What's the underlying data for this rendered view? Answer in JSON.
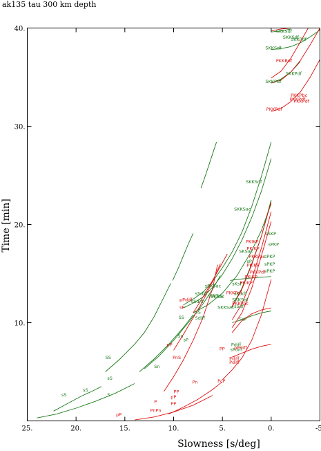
{
  "chart_data": {
    "type": "line",
    "title": "ak135 tau 300 km depth",
    "xlabel": "Slowness [s/deg]",
    "ylabel": "Time [min]",
    "xlim": [
      25,
      -5
    ],
    "ylim": [
      0,
      40
    ],
    "x_ticks": [
      {
        "v": 25,
        "label": "25."
      },
      {
        "v": 20,
        "label": "20."
      },
      {
        "v": 15,
        "label": "15."
      },
      {
        "v": 10,
        "label": "10."
      },
      {
        "v": 5,
        "label": "5."
      },
      {
        "v": 0,
        "label": "0."
      },
      {
        "v": -5,
        "label": "-5."
      }
    ],
    "y_ticks": [
      {
        "v": 10,
        "label": "10."
      },
      {
        "v": 20,
        "label": "20."
      },
      {
        "v": 30,
        "label": "30."
      },
      {
        "v": 40,
        "label": "40."
      }
    ],
    "grid": false,
    "colors": {
      "S": "#1a7a1a",
      "P": "#e01010",
      "axis": "#000000"
    },
    "series": [
      {
        "color": "S",
        "x": [
          22.3,
          21,
          19.5,
          18.2,
          17.4
        ],
        "y": [
          1.0,
          1.7,
          2.5,
          3.1,
          3.5
        ]
      },
      {
        "color": "S",
        "x": [
          17.0,
          15.5,
          14.0,
          13.0,
          12.0,
          11.0,
          10.3
        ],
        "y": [
          5.0,
          6.3,
          7.8,
          9.0,
          10.6,
          12.6,
          14.0
        ]
      },
      {
        "color": "S",
        "x": [
          10.1,
          9.5,
          9.0,
          8.5,
          8.0
        ],
        "y": [
          14.3,
          15.6,
          16.8,
          18.0,
          19.1
        ]
      },
      {
        "color": "S",
        "x": [
          7.2,
          6.8,
          6.4,
          6.0,
          5.6
        ],
        "y": [
          23.7,
          24.8,
          26.0,
          27.2,
          28.4
        ]
      },
      {
        "color": "S",
        "x": [
          24.0,
          22.0,
          20.0,
          18.0,
          16.0,
          14.0
        ],
        "y": [
          0.3,
          0.7,
          1.3,
          2.0,
          2.8,
          3.8
        ]
      },
      {
        "color": "S",
        "x": [
          13.5,
          12.0,
          10.5,
          9.0,
          8.0
        ],
        "y": [
          5.0,
          6.3,
          7.8,
          9.5,
          10.8
        ]
      },
      {
        "color": "S",
        "x": [
          9.0,
          8.0,
          7.0,
          6.0,
          5.0,
          4.0,
          3.0,
          2.0,
          1.0,
          0.0
        ],
        "y": [
          11.8,
          12.4,
          13.1,
          14.2,
          15.6,
          17.2,
          19.2,
          21.8,
          24.9,
          28.4
        ]
      },
      {
        "color": "S",
        "x": [
          9.0,
          8.0,
          7.0,
          6.0,
          5.0,
          4.0,
          3.0,
          2.0,
          1.0,
          0.0
        ],
        "y": [
          11.5,
          12.0,
          12.6,
          13.6,
          14.9,
          16.5,
          18.4,
          20.7,
          23.4,
          26.7
        ]
      },
      {
        "color": "S",
        "x": [
          8.0,
          6.5,
          5.0,
          3.5,
          2.0,
          1.0,
          0.0
        ],
        "y": [
          11.0,
          11.8,
          13.0,
          14.8,
          17.3,
          19.4,
          22.1
        ]
      },
      {
        "color": "S",
        "x": [
          13.0,
          11.5,
          10.0,
          8.5,
          7.0,
          6.0,
          5.2
        ],
        "y": [
          5.3,
          6.6,
          8.2,
          10.0,
          11.9,
          13.4,
          14.8
        ]
      },
      {
        "color": "S",
        "x": [
          4.0,
          3.0,
          2.0,
          1.0,
          0.0
        ],
        "y": [
          10.0,
          10.3,
          10.7,
          11.0,
          11.2
        ]
      },
      {
        "color": "S",
        "x": [
          4.2,
          3.5,
          2.5,
          1.5,
          0.0
        ],
        "y": [
          14.3,
          14.4,
          14.5,
          14.6,
          14.7
        ]
      },
      {
        "color": "S",
        "x": [
          4.1,
          3.0,
          2.0,
          1.0,
          0.0
        ],
        "y": [
          11.5,
          13.5,
          16.0,
          18.8,
          22.5
        ]
      },
      {
        "color": "S",
        "x": [
          0.0,
          -1.0,
          -2.0,
          -3.0
        ],
        "y": [
          34.4,
          34.8,
          35.5,
          36.6
        ]
      },
      {
        "color": "S",
        "x": [
          0.0,
          -1.0,
          -2.0,
          -3.0,
          -4.0,
          -5.0
        ],
        "y": [
          37.8,
          37.9,
          38.1,
          38.5,
          39.1,
          39.8
        ]
      },
      {
        "color": "S",
        "x": [
          0.0,
          -1.0,
          -2.0
        ],
        "y": [
          39.6,
          39.7,
          39.9
        ]
      },
      {
        "color": "P",
        "x": [
          14.0,
          12.0,
          10.0,
          8.0,
          6.0
        ],
        "y": [
          0.1,
          0.4,
          0.9,
          1.6,
          2.6
        ]
      },
      {
        "color": "P",
        "x": [
          10.5,
          9.0,
          7.5,
          6.0,
          5.0
        ],
        "y": [
          0.7,
          1.4,
          2.2,
          3.2,
          4.0
        ]
      },
      {
        "color": "P",
        "x": [
          5.0,
          4.0,
          3.0,
          2.0,
          1.0,
          0.0
        ],
        "y": [
          4.2,
          5.2,
          6.4,
          8.2,
          10.8,
          14.4
        ]
      },
      {
        "color": "P",
        "x": [
          11.0,
          10.0,
          9.0,
          8.0,
          7.0,
          6.0,
          5.5
        ],
        "y": [
          3.0,
          4.5,
          6.2,
          8.2,
          10.5,
          13.5,
          15.9
        ]
      },
      {
        "color": "P",
        "x": [
          10.0,
          9.0,
          8.0,
          7.0,
          6.0,
          5.2
        ],
        "y": [
          7.2,
          8.8,
          10.5,
          12.2,
          14.2,
          16.0
        ]
      },
      {
        "color": "P",
        "x": [
          8.0,
          7.0,
          6.0,
          5.0,
          4.5
        ],
        "y": [
          11.0,
          12.6,
          14.3,
          16.1,
          17.0
        ]
      },
      {
        "color": "P",
        "x": [
          4.0,
          3.0,
          2.0,
          1.0,
          0.0
        ],
        "y": [
          9.5,
          11.0,
          13.5,
          16.8,
          20.3
        ]
      },
      {
        "color": "P",
        "x": [
          4.0,
          3.0,
          2.0,
          1.0,
          0.0
        ],
        "y": [
          10.3,
          11.9,
          14.4,
          17.6,
          21.3
        ]
      },
      {
        "color": "P",
        "x": [
          4.0,
          3.0,
          2.0,
          1.0,
          0.0
        ],
        "y": [
          11.6,
          13.4,
          15.9,
          18.8,
          22.3
        ]
      },
      {
        "color": "P",
        "x": [
          4.0,
          3.0,
          2.0,
          1.0,
          0.0
        ],
        "y": [
          6.5,
          6.9,
          7.3,
          7.6,
          7.8
        ]
      },
      {
        "color": "P",
        "x": [
          4.0,
          3.0,
          2.0,
          1.0,
          0.0
        ],
        "y": [
          9.0,
          10.2,
          10.9,
          11.3,
          11.5
        ]
      },
      {
        "color": "P",
        "x": [
          0.0,
          -1.0,
          -2.0,
          -3.0,
          -4.0,
          -5.0
        ],
        "y": [
          31.5,
          31.8,
          32.5,
          33.5,
          35.0,
          36.8
        ]
      },
      {
        "color": "P",
        "x": [
          0.0,
          -1.0,
          -2.0,
          -3.0,
          -4.0,
          -5.0
        ],
        "y": [
          34.4,
          34.7,
          35.5,
          36.7,
          38.3,
          40.0
        ]
      },
      {
        "color": "P",
        "x": [
          0.0,
          -1.0,
          -2.0,
          -3.0,
          -3.8
        ],
        "y": [
          34.9,
          35.6,
          36.9,
          38.6,
          40.0
        ]
      },
      {
        "color": "P",
        "x": [
          0.0,
          -1.0,
          -2.0
        ],
        "y": [
          39.7,
          39.9,
          40.0
        ]
      }
    ],
    "annotations": [
      {
        "text": "sS",
        "x": 19.3,
        "y": 3.0,
        "color": "S"
      },
      {
        "text": "sS",
        "x": 21.5,
        "y": 2.5,
        "color": "S"
      },
      {
        "text": "sS",
        "x": 16.8,
        "y": 4.2,
        "color": "S"
      },
      {
        "text": "S",
        "x": 16.8,
        "y": 2.5,
        "color": "S"
      },
      {
        "text": "SS",
        "x": 17.0,
        "y": 6.3,
        "color": "S"
      },
      {
        "text": "Sn",
        "x": 9.6,
        "y": 8.5,
        "color": "S"
      },
      {
        "text": "Sn",
        "x": 12.0,
        "y": 5.4,
        "color": "S"
      },
      {
        "text": "SS",
        "x": 9.5,
        "y": 10.4,
        "color": "S"
      },
      {
        "text": "sP",
        "x": 9.0,
        "y": 8.1,
        "color": "S"
      },
      {
        "text": "SS",
        "x": 7.8,
        "y": 10.9,
        "color": "S"
      },
      {
        "text": "Sdiff",
        "x": 7.8,
        "y": 10.3,
        "color": "S"
      },
      {
        "text": "sSdiff",
        "x": 7.8,
        "y": 12.8,
        "color": "S"
      },
      {
        "text": "sSdiff",
        "x": 8.2,
        "y": 12.0,
        "color": "S"
      },
      {
        "text": "sSKSac",
        "x": 6.8,
        "y": 13.6,
        "color": "S"
      },
      {
        "text": "sSKSac",
        "x": 6.5,
        "y": 12.6,
        "color": "S"
      },
      {
        "text": "SKSac",
        "x": 6.2,
        "y": 12.5,
        "color": "S"
      },
      {
        "text": "SKKSac",
        "x": 5.5,
        "y": 11.4,
        "color": "S"
      },
      {
        "text": "SKSac",
        "x": 3.3,
        "y": 17.1,
        "color": "S"
      },
      {
        "text": "SKKSac",
        "x": 3.8,
        "y": 21.4,
        "color": "S"
      },
      {
        "text": "SKKSdf",
        "x": 2.6,
        "y": 24.2,
        "color": "S"
      },
      {
        "text": "sKsP",
        "x": 4.0,
        "y": 13.8,
        "color": "S"
      },
      {
        "text": "sKSdf",
        "x": 3.8,
        "y": 12.8,
        "color": "S"
      },
      {
        "text": "SKKSdf",
        "x": 4.0,
        "y": 12.2,
        "color": "S"
      },
      {
        "text": "sSdf",
        "x": 3.8,
        "y": 11.5,
        "color": "S"
      },
      {
        "text": "sSKP",
        "x": 0.6,
        "y": 18.9,
        "color": "S"
      },
      {
        "text": "sPKP",
        "x": 0.3,
        "y": 17.8,
        "color": "S"
      },
      {
        "text": "sPKP",
        "x": 0.7,
        "y": 16.6,
        "color": "S"
      },
      {
        "text": "sPKP",
        "x": 0.7,
        "y": 15.8,
        "color": "S"
      },
      {
        "text": "sPKP",
        "x": 0.7,
        "y": 15.1,
        "color": "S"
      },
      {
        "text": "ScP",
        "x": 3.3,
        "y": 10.2,
        "color": "S"
      },
      {
        "text": "Pdiff",
        "x": 4.1,
        "y": 7.6,
        "color": "S"
      },
      {
        "text": "sPdiff",
        "x": 4.2,
        "y": 7.1,
        "color": "S"
      },
      {
        "text": "sP",
        "x": 2.5,
        "y": 16.1,
        "color": "S"
      },
      {
        "text": "SKKSdf",
        "x": -0.5,
        "y": 39.5,
        "color": "S"
      },
      {
        "text": "SKKSdf",
        "x": -1.2,
        "y": 38.9,
        "color": "S"
      },
      {
        "text": "SKKSdf",
        "x": 0.6,
        "y": 37.8,
        "color": "S"
      },
      {
        "text": "SKKPdf",
        "x": -2.0,
        "y": 38.7,
        "color": "S"
      },
      {
        "text": "SKKPdf",
        "x": -1.5,
        "y": 35.2,
        "color": "S"
      },
      {
        "text": "SKKPdf",
        "x": 0.6,
        "y": 34.4,
        "color": "S"
      },
      {
        "text": "pP",
        "x": 15.9,
        "y": 0.5,
        "color": "P"
      },
      {
        "text": "PnPn",
        "x": 12.4,
        "y": 0.9,
        "color": "P"
      },
      {
        "text": "P",
        "x": 12.0,
        "y": 1.8,
        "color": "P"
      },
      {
        "text": "PP",
        "x": 10.3,
        "y": 1.6,
        "color": "P"
      },
      {
        "text": "pP",
        "x": 10.3,
        "y": 2.3,
        "color": "P"
      },
      {
        "text": "PP",
        "x": 10.0,
        "y": 2.8,
        "color": "P"
      },
      {
        "text": "Pn",
        "x": 8.1,
        "y": 3.8,
        "color": "P"
      },
      {
        "text": "PnS",
        "x": 10.1,
        "y": 6.3,
        "color": "P"
      },
      {
        "text": "pP",
        "x": 10.7,
        "y": 7.6,
        "color": "P"
      },
      {
        "text": "sP",
        "x": 9.4,
        "y": 11.4,
        "color": "P"
      },
      {
        "text": "pPdiff",
        "x": 9.4,
        "y": 12.2,
        "color": "P"
      },
      {
        "text": "PKKPdf",
        "x": 4.6,
        "y": 12.9,
        "color": "P"
      },
      {
        "text": "PKKPac",
        "x": 4.0,
        "y": 11.8,
        "color": "P"
      },
      {
        "text": "PKiKP",
        "x": 3.2,
        "y": 13.9,
        "color": "P"
      },
      {
        "text": "PKiKP",
        "x": 2.7,
        "y": 14.5,
        "color": "P"
      },
      {
        "text": "PKKPdf",
        "x": 2.2,
        "y": 15.0,
        "color": "P"
      },
      {
        "text": "PKiKP",
        "x": 2.5,
        "y": 15.7,
        "color": "P"
      },
      {
        "text": "PKKPac",
        "x": 2.3,
        "y": 16.6,
        "color": "P"
      },
      {
        "text": "PKIKP",
        "x": 2.5,
        "y": 17.4,
        "color": "P"
      },
      {
        "text": "PKIKP",
        "x": 2.6,
        "y": 18.1,
        "color": "P"
      },
      {
        "text": "PP",
        "x": 5.3,
        "y": 7.2,
        "color": "P"
      },
      {
        "text": "Pdiff",
        "x": 4.3,
        "y": 6.2,
        "color": "P"
      },
      {
        "text": "Pdiff",
        "x": 4.3,
        "y": 5.8,
        "color": "P"
      },
      {
        "text": "pPdiff",
        "x": 3.8,
        "y": 7.3,
        "color": "P"
      },
      {
        "text": "PcP",
        "x": 5.5,
        "y": 3.9,
        "color": "P"
      },
      {
        "text": "PKKPbc",
        "x": -2.0,
        "y": 33.0,
        "color": "P"
      },
      {
        "text": "PKKPdf",
        "x": -1.9,
        "y": 32.6,
        "color": "P"
      },
      {
        "text": "PKKPdf",
        "x": -2.3,
        "y": 32.4,
        "color": "P"
      },
      {
        "text": "PKKPdf",
        "x": 0.5,
        "y": 31.6,
        "color": "P"
      },
      {
        "text": "PKKBdf",
        "x": -0.5,
        "y": 36.5,
        "color": "P"
      }
    ]
  }
}
